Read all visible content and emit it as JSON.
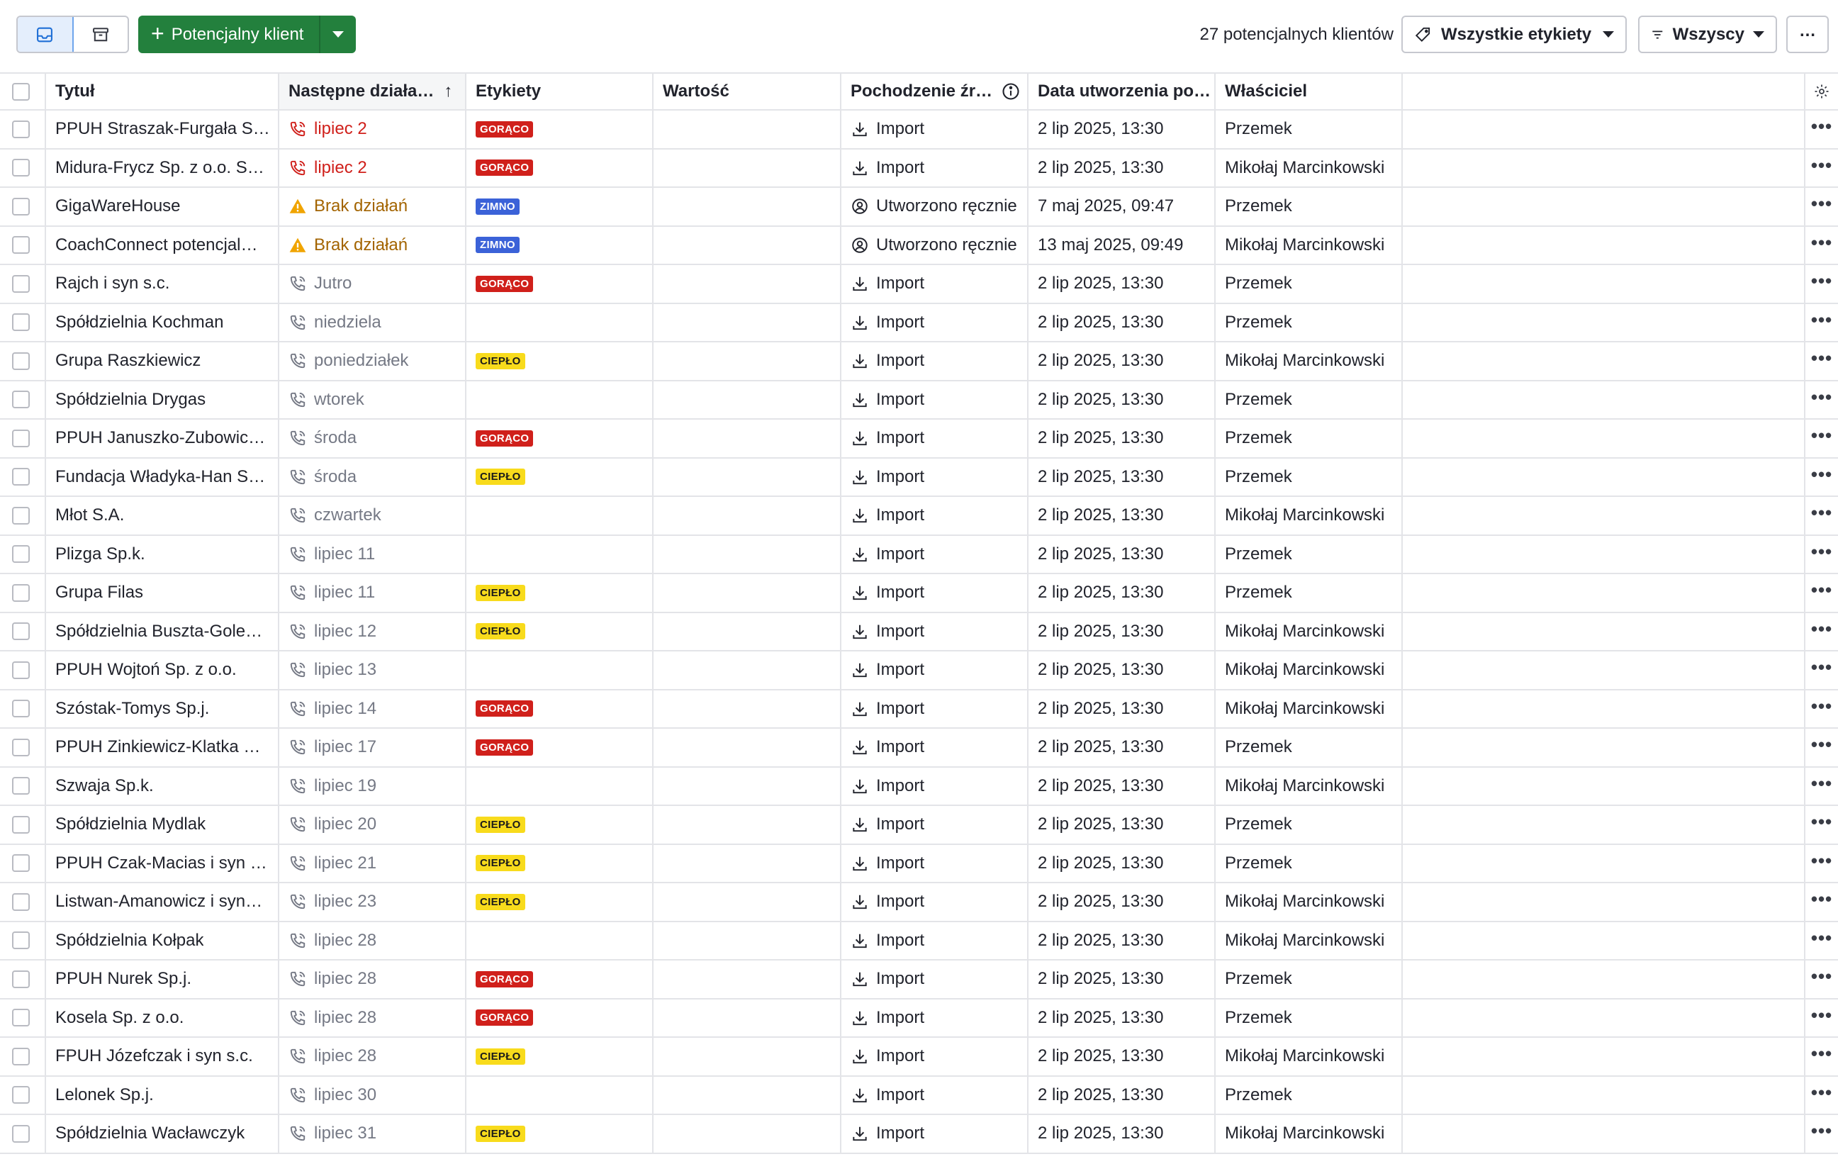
{
  "toolbar": {
    "add_label": "Potencjalny klient",
    "count_text": "27 potencjalnych klientów",
    "labels_filter": "Wszystkie etykiety",
    "owners_filter": "Wszyscy",
    "more_label": "…"
  },
  "columns": {
    "title": "Tytuł",
    "next": "Następne działa…",
    "tags": "Etykiety",
    "value": "Wartość",
    "source": "Pochodzenie źr…",
    "created": "Data utworzenia po…",
    "owner": "Właściciel"
  },
  "colors": {
    "brand_green": "#23803d",
    "hot": "#d0201b",
    "cold": "#3b62d8",
    "warm": "#f8db1c",
    "warning": "#a36400"
  },
  "rows": [
    {
      "title": "PPUH Straszak-Furgała S…",
      "next": "lipiec 2",
      "next_state": "overdue",
      "tag": "GORĄCO",
      "tag_type": "hot",
      "value": "",
      "source": "Import",
      "source_type": "import",
      "created": "2 lip 2025, 13:30",
      "owner": "Przemek"
    },
    {
      "title": "Midura-Frycz Sp. z o.o. S…",
      "next": "lipiec 2",
      "next_state": "overdue",
      "tag": "GORĄCO",
      "tag_type": "hot",
      "value": "",
      "source": "Import",
      "source_type": "import",
      "created": "2 lip 2025, 13:30",
      "owner": "Mikołaj Marcinkowski"
    },
    {
      "title": "GigaWareHouse",
      "next": "Brak działań",
      "next_state": "none",
      "tag": "ZIMNO",
      "tag_type": "cold",
      "value": "",
      "source": "Utworzono ręcznie",
      "source_type": "manual",
      "created": "7 maj 2025, 09:47",
      "owner": "Przemek"
    },
    {
      "title": "CoachConnect potencjal…",
      "next": "Brak działań",
      "next_state": "none",
      "tag": "ZIMNO",
      "tag_type": "cold",
      "value": "",
      "source": "Utworzono ręcznie",
      "source_type": "manual",
      "created": "13 maj 2025, 09:49",
      "owner": "Mikołaj Marcinkowski"
    },
    {
      "title": "Rajch i syn s.c.",
      "next": "Jutro",
      "next_state": "planned",
      "tag": "GORĄCO",
      "tag_type": "hot",
      "value": "",
      "source": "Import",
      "source_type": "import",
      "created": "2 lip 2025, 13:30",
      "owner": "Przemek"
    },
    {
      "title": "Spółdzielnia Kochman",
      "next": "niedziela",
      "next_state": "planned",
      "tag": "",
      "tag_type": "",
      "value": "",
      "source": "Import",
      "source_type": "import",
      "created": "2 lip 2025, 13:30",
      "owner": "Przemek"
    },
    {
      "title": "Grupa Raszkiewicz",
      "next": "poniedziałek",
      "next_state": "planned",
      "tag": "CIEPŁO",
      "tag_type": "warm",
      "value": "",
      "source": "Import",
      "source_type": "import",
      "created": "2 lip 2025, 13:30",
      "owner": "Mikołaj Marcinkowski"
    },
    {
      "title": "Spółdzielnia Drygas",
      "next": "wtorek",
      "next_state": "planned",
      "tag": "",
      "tag_type": "",
      "value": "",
      "source": "Import",
      "source_type": "import",
      "created": "2 lip 2025, 13:30",
      "owner": "Przemek"
    },
    {
      "title": "PPUH Januszko-Zubowic…",
      "next": "środa",
      "next_state": "planned",
      "tag": "GORĄCO",
      "tag_type": "hot",
      "value": "",
      "source": "Import",
      "source_type": "import",
      "created": "2 lip 2025, 13:30",
      "owner": "Przemek"
    },
    {
      "title": "Fundacja Władyka-Han S…",
      "next": "środa",
      "next_state": "planned",
      "tag": "CIEPŁO",
      "tag_type": "warm",
      "value": "",
      "source": "Import",
      "source_type": "import",
      "created": "2 lip 2025, 13:30",
      "owner": "Przemek"
    },
    {
      "title": "Młot S.A.",
      "next": "czwartek",
      "next_state": "planned",
      "tag": "",
      "tag_type": "",
      "value": "",
      "source": "Import",
      "source_type": "import",
      "created": "2 lip 2025, 13:30",
      "owner": "Mikołaj Marcinkowski"
    },
    {
      "title": "Plizga Sp.k.",
      "next": "lipiec 11",
      "next_state": "planned",
      "tag": "",
      "tag_type": "",
      "value": "",
      "source": "Import",
      "source_type": "import",
      "created": "2 lip 2025, 13:30",
      "owner": "Przemek"
    },
    {
      "title": "Grupa Filas",
      "next": "lipiec 11",
      "next_state": "planned",
      "tag": "CIEPŁO",
      "tag_type": "warm",
      "value": "",
      "source": "Import",
      "source_type": "import",
      "created": "2 lip 2025, 13:30",
      "owner": "Przemek"
    },
    {
      "title": "Spółdzielnia Buszta-Gole…",
      "next": "lipiec 12",
      "next_state": "planned",
      "tag": "CIEPŁO",
      "tag_type": "warm",
      "value": "",
      "source": "Import",
      "source_type": "import",
      "created": "2 lip 2025, 13:30",
      "owner": "Mikołaj Marcinkowski"
    },
    {
      "title": "PPUH Wojtoń Sp. z o.o.",
      "next": "lipiec 13",
      "next_state": "planned",
      "tag": "",
      "tag_type": "",
      "value": "",
      "source": "Import",
      "source_type": "import",
      "created": "2 lip 2025, 13:30",
      "owner": "Mikołaj Marcinkowski"
    },
    {
      "title": "Szóstak-Tomys Sp.j.",
      "next": "lipiec 14",
      "next_state": "planned",
      "tag": "GORĄCO",
      "tag_type": "hot",
      "value": "",
      "source": "Import",
      "source_type": "import",
      "created": "2 lip 2025, 13:30",
      "owner": "Mikołaj Marcinkowski"
    },
    {
      "title": "PPUH Zinkiewicz-Klatka …",
      "next": "lipiec 17",
      "next_state": "planned",
      "tag": "GORĄCO",
      "tag_type": "hot",
      "value": "",
      "source": "Import",
      "source_type": "import",
      "created": "2 lip 2025, 13:30",
      "owner": "Przemek"
    },
    {
      "title": "Szwaja Sp.k.",
      "next": "lipiec 19",
      "next_state": "planned",
      "tag": "",
      "tag_type": "",
      "value": "",
      "source": "Import",
      "source_type": "import",
      "created": "2 lip 2025, 13:30",
      "owner": "Mikołaj Marcinkowski"
    },
    {
      "title": "Spółdzielnia Mydlak",
      "next": "lipiec 20",
      "next_state": "planned",
      "tag": "CIEPŁO",
      "tag_type": "warm",
      "value": "",
      "source": "Import",
      "source_type": "import",
      "created": "2 lip 2025, 13:30",
      "owner": "Przemek"
    },
    {
      "title": "PPUH Czak-Macias i syn …",
      "next": "lipiec 21",
      "next_state": "planned",
      "tag": "CIEPŁO",
      "tag_type": "warm",
      "value": "",
      "source": "Import",
      "source_type": "import",
      "created": "2 lip 2025, 13:30",
      "owner": "Przemek"
    },
    {
      "title": "Listwan-Amanowicz i syn…",
      "next": "lipiec 23",
      "next_state": "planned",
      "tag": "CIEPŁO",
      "tag_type": "warm",
      "value": "",
      "source": "Import",
      "source_type": "import",
      "created": "2 lip 2025, 13:30",
      "owner": "Mikołaj Marcinkowski"
    },
    {
      "title": "Spółdzielnia Kołpak",
      "next": "lipiec 28",
      "next_state": "planned",
      "tag": "",
      "tag_type": "",
      "value": "",
      "source": "Import",
      "source_type": "import",
      "created": "2 lip 2025, 13:30",
      "owner": "Mikołaj Marcinkowski"
    },
    {
      "title": "PPUH Nurek Sp.j.",
      "next": "lipiec 28",
      "next_state": "planned",
      "tag": "GORĄCO",
      "tag_type": "hot",
      "value": "",
      "source": "Import",
      "source_type": "import",
      "created": "2 lip 2025, 13:30",
      "owner": "Przemek"
    },
    {
      "title": "Kosela Sp. z o.o.",
      "next": "lipiec 28",
      "next_state": "planned",
      "tag": "GORĄCO",
      "tag_type": "hot",
      "value": "",
      "source": "Import",
      "source_type": "import",
      "created": "2 lip 2025, 13:30",
      "owner": "Przemek"
    },
    {
      "title": "FPUH Józefczak i syn s.c.",
      "next": "lipiec 28",
      "next_state": "planned",
      "tag": "CIEPŁO",
      "tag_type": "warm",
      "value": "",
      "source": "Import",
      "source_type": "import",
      "created": "2 lip 2025, 13:30",
      "owner": "Mikołaj Marcinkowski"
    },
    {
      "title": "Lelonek Sp.j.",
      "next": "lipiec 30",
      "next_state": "planned",
      "tag": "",
      "tag_type": "",
      "value": "",
      "source": "Import",
      "source_type": "import",
      "created": "2 lip 2025, 13:30",
      "owner": "Przemek"
    },
    {
      "title": "Spółdzielnia Wacławczyk",
      "next": "lipiec 31",
      "next_state": "planned",
      "tag": "CIEPŁO",
      "tag_type": "warm",
      "value": "",
      "source": "Import",
      "source_type": "import",
      "created": "2 lip 2025, 13:30",
      "owner": "Mikołaj Marcinkowski"
    }
  ]
}
